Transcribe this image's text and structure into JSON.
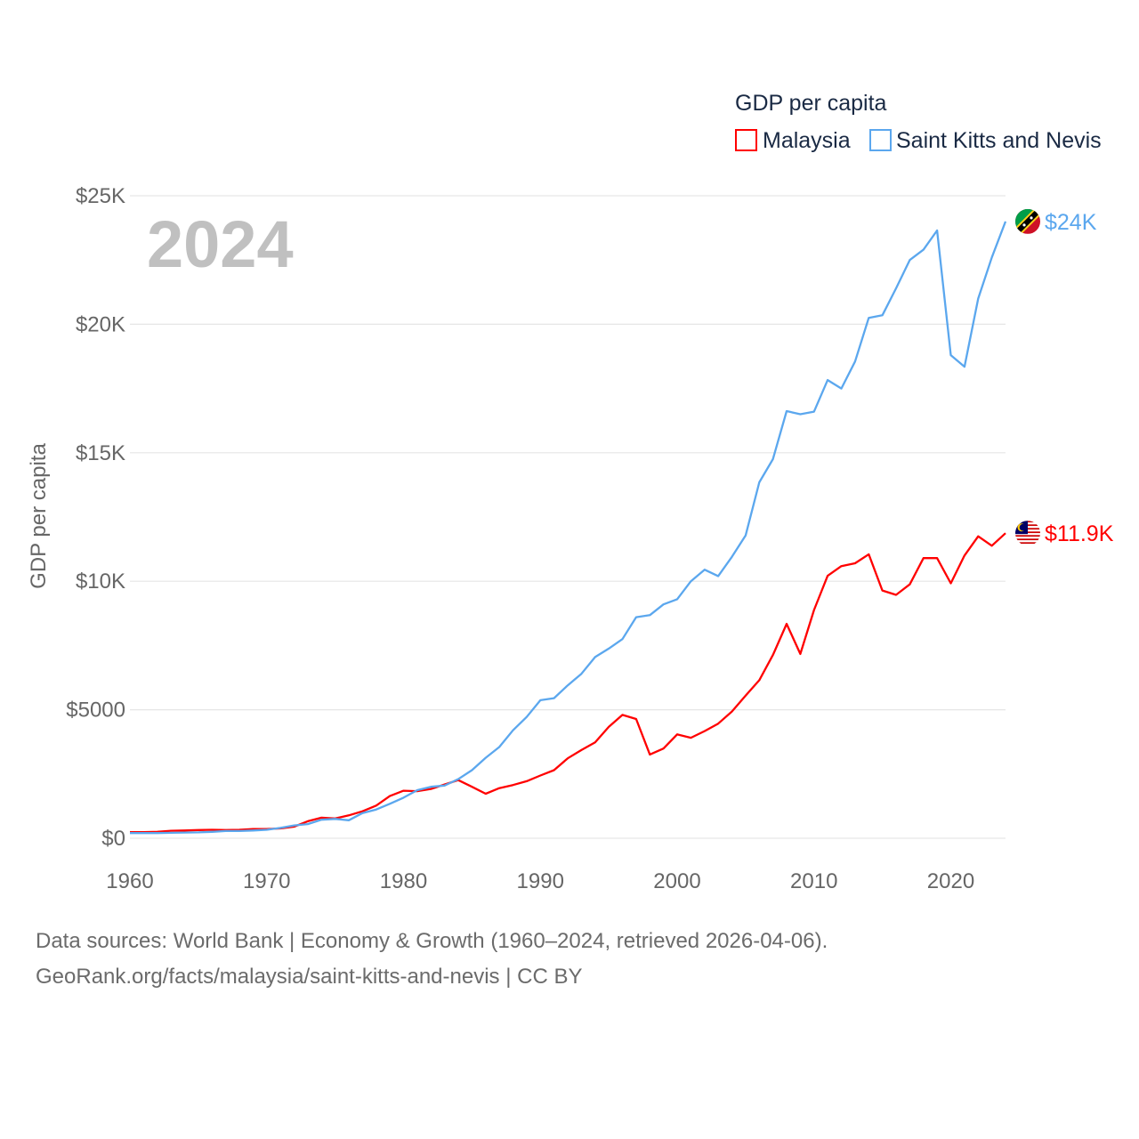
{
  "chart_data": {
    "type": "line",
    "title": "GDP per capita",
    "ylabel": "GDP per capita",
    "xlabel": "",
    "year_label": "2024",
    "xlim": [
      1960,
      2024
    ],
    "ylim": [
      0,
      25000
    ],
    "x_ticks": [
      1960,
      1970,
      1980,
      1990,
      2000,
      2010,
      2020
    ],
    "x_tick_labels": [
      "1960",
      "1970",
      "1980",
      "1990",
      "2000",
      "2010",
      "2020"
    ],
    "y_ticks": [
      0,
      5000,
      10000,
      15000,
      20000,
      25000
    ],
    "y_tick_labels": [
      "$0",
      "$5000",
      "$10K",
      "$15K",
      "$20K",
      "$25K"
    ],
    "grid": true,
    "legend_placement": "top-right",
    "x": [
      1960,
      1961,
      1962,
      1963,
      1964,
      1965,
      1966,
      1967,
      1968,
      1969,
      1970,
      1971,
      1972,
      1973,
      1974,
      1975,
      1976,
      1977,
      1978,
      1979,
      1980,
      1981,
      1982,
      1983,
      1984,
      1985,
      1986,
      1987,
      1988,
      1989,
      1990,
      1991,
      1992,
      1993,
      1994,
      1995,
      1996,
      1997,
      1998,
      1999,
      2000,
      2001,
      2002,
      2003,
      2004,
      2005,
      2006,
      2007,
      2008,
      2009,
      2010,
      2011,
      2012,
      2013,
      2014,
      2015,
      2016,
      2017,
      2018,
      2019,
      2020,
      2021,
      2022,
      2023,
      2024
    ],
    "series": [
      {
        "name": "Malaysia",
        "color": "#ff0000",
        "end_label": "$11.9K",
        "flag": "malaysia-flag",
        "values": [
          240,
          240,
          250,
          290,
          300,
          320,
          330,
          320,
          330,
          360,
          360,
          380,
          450,
          660,
          800,
          770,
          890,
          1050,
          1270,
          1640,
          1850,
          1830,
          1920,
          2090,
          2260,
          2000,
          1730,
          1950,
          2070,
          2220,
          2440,
          2650,
          3110,
          3430,
          3730,
          4330,
          4800,
          4640,
          3260,
          3490,
          4040,
          3910,
          4170,
          4460,
          4930,
          5550,
          6150,
          7130,
          8340,
          7170,
          8880,
          10210,
          10590,
          10700,
          11050,
          9640,
          9470,
          9880,
          10900,
          10900,
          9920,
          11000,
          11750,
          11380,
          11870
        ]
      },
      {
        "name": "Saint Kitts and Nevis",
        "color": "#5ba7ee",
        "end_label": "$24K",
        "flag": "saint-kitts-and-nevis-flag",
        "values": [
          200,
          200,
          200,
          210,
          220,
          230,
          250,
          280,
          280,
          300,
          330,
          400,
          500,
          550,
          720,
          750,
          700,
          980,
          1120,
          1340,
          1580,
          1870,
          2000,
          2050,
          2300,
          2650,
          3130,
          3550,
          4200,
          4720,
          5370,
          5450,
          5950,
          6400,
          7050,
          7380,
          7750,
          8600,
          8680,
          9100,
          9300,
          10000,
          10450,
          10200,
          10950,
          11780,
          13850,
          14750,
          16620,
          16500,
          16600,
          17830,
          17500,
          18550,
          20250,
          20350,
          21400,
          22500,
          22900,
          23650,
          18800,
          18350,
          21000,
          22600,
          24000
        ]
      }
    ]
  },
  "footer": {
    "line1": "Data sources: World Bank | Economy & Growth (1960–2024, retrieved 2026-04-06).",
    "line2": "GeoRank.org/facts/malaysia/saint-kitts-and-nevis | CC BY"
  }
}
